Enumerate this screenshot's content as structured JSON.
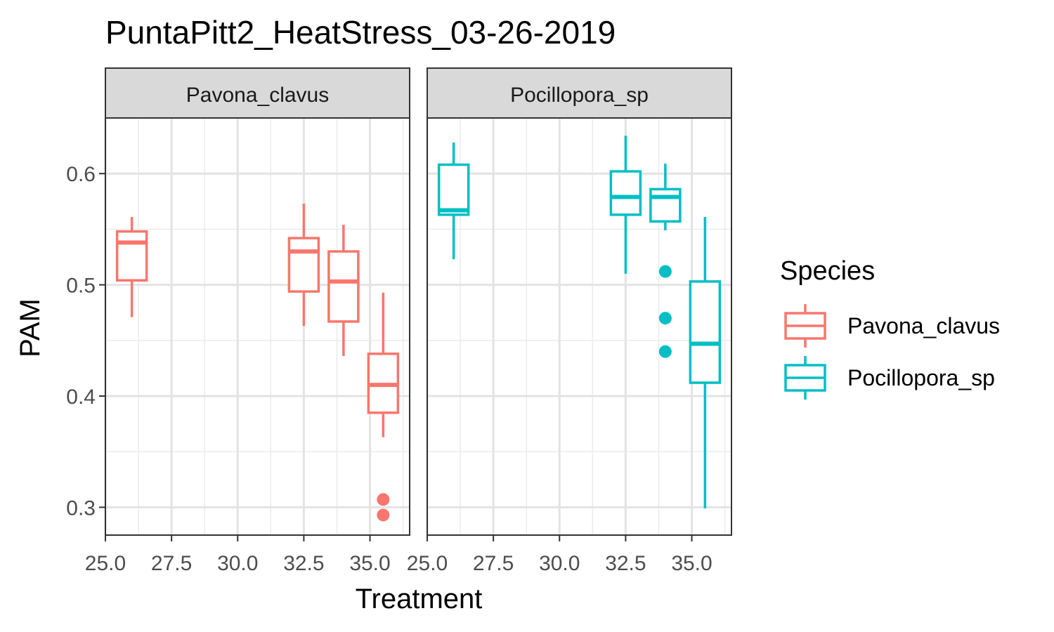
{
  "chart_data": {
    "type": "boxplot",
    "title": "PuntaPitt2_HeatStress_03-26-2019",
    "xlabel": "Treatment",
    "ylabel": "PAM",
    "xlim": [
      25.0,
      36.5
    ],
    "ylim": [
      0.275,
      0.65
    ],
    "x_ticks": [
      "25.0",
      "27.5",
      "30.0",
      "32.5",
      "35.0"
    ],
    "y_ticks": [
      "0.3",
      "0.4",
      "0.5",
      "0.6"
    ],
    "grid": true,
    "legend": {
      "title": "Species",
      "position": "right",
      "items": [
        {
          "label": "Pavona_clavus",
          "color": "#F8766D"
        },
        {
          "label": "Pocillopora_sp",
          "color": "#00BFC4"
        }
      ]
    },
    "facets": [
      {
        "label": "Pavona_clavus",
        "color": "#F8766D",
        "boxes": [
          {
            "x": 26.0,
            "lower_whisker": 0.471,
            "q1": 0.504,
            "median": 0.538,
            "q3": 0.548,
            "upper_whisker": 0.561,
            "outliers": []
          },
          {
            "x": 32.5,
            "lower_whisker": 0.463,
            "q1": 0.494,
            "median": 0.53,
            "q3": 0.542,
            "upper_whisker": 0.573,
            "outliers": []
          },
          {
            "x": 34.0,
            "lower_whisker": 0.436,
            "q1": 0.467,
            "median": 0.503,
            "q3": 0.53,
            "upper_whisker": 0.554,
            "outliers": []
          },
          {
            "x": 35.5,
            "lower_whisker": 0.363,
            "q1": 0.385,
            "median": 0.41,
            "q3": 0.438,
            "upper_whisker": 0.493,
            "outliers": [
              0.307,
              0.293
            ]
          }
        ]
      },
      {
        "label": "Pocillopora_sp",
        "color": "#00BFC4",
        "boxes": [
          {
            "x": 26.0,
            "lower_whisker": 0.523,
            "q1": 0.563,
            "median": 0.567,
            "q3": 0.608,
            "upper_whisker": 0.628,
            "outliers": []
          },
          {
            "x": 32.5,
            "lower_whisker": 0.51,
            "q1": 0.563,
            "median": 0.579,
            "q3": 0.602,
            "upper_whisker": 0.634,
            "outliers": []
          },
          {
            "x": 34.0,
            "lower_whisker": 0.549,
            "q1": 0.557,
            "median": 0.579,
            "q3": 0.586,
            "upper_whisker": 0.609,
            "outliers": [
              0.512,
              0.47,
              0.44
            ]
          },
          {
            "x": 35.5,
            "lower_whisker": 0.299,
            "q1": 0.412,
            "median": 0.447,
            "q3": 0.503,
            "upper_whisker": 0.561,
            "outliers": []
          }
        ]
      }
    ]
  }
}
